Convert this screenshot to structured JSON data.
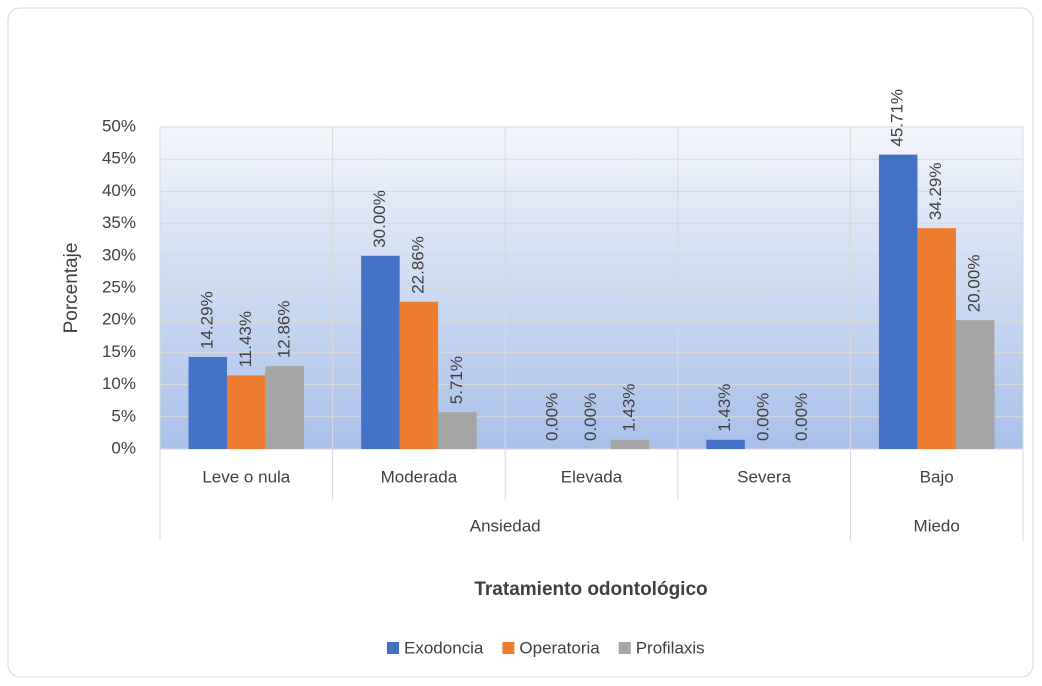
{
  "chart_data": {
    "type": "bar",
    "x_title": "Tratamiento odontológico",
    "y_title": "Porcentaje",
    "categories": [
      "Leve o nula",
      "Moderada",
      "Elevada",
      "Severa",
      "Bajo"
    ],
    "category_groups": [
      "Ansiedad",
      "Ansiedad",
      "Ansiedad",
      "Ansiedad",
      "Miedo"
    ],
    "series": [
      {
        "name": "Exodoncia",
        "color": "#4472c4",
        "values": [
          14.29,
          30.0,
          0.0,
          1.43,
          45.71
        ],
        "value_labels": [
          "14.29%",
          "30.00%",
          "0.00%",
          "1.43%",
          "45.71%"
        ]
      },
      {
        "name": "Operatoria",
        "color": "#ed7d31",
        "values": [
          11.43,
          22.86,
          0.0,
          0.0,
          34.29
        ],
        "value_labels": [
          "11.43%",
          "22.86%",
          "0.00%",
          "0.00%",
          "34.29%"
        ]
      },
      {
        "name": "Profilaxis",
        "color": "#a5a5a5",
        "values": [
          12.86,
          5.71,
          1.43,
          0.0,
          20.0
        ],
        "value_labels": [
          "12.86%",
          "5.71%",
          "1.43%",
          "0.00%",
          "20.00%"
        ]
      }
    ],
    "ylim": [
      0,
      50
    ],
    "yticks": [
      {
        "value": 0,
        "label": "0%"
      },
      {
        "value": 5,
        "label": "5%"
      },
      {
        "value": 10,
        "label": "10%"
      },
      {
        "value": 15,
        "label": "15%"
      },
      {
        "value": 20,
        "label": "20%"
      },
      {
        "value": 25,
        "label": "25%"
      },
      {
        "value": 30,
        "label": "30%"
      },
      {
        "value": 35,
        "label": "35%"
      },
      {
        "value": 40,
        "label": "40%"
      },
      {
        "value": 45,
        "label": "45%"
      },
      {
        "value": 50,
        "label": "50%"
      }
    ],
    "grid": true,
    "legend": "bottom"
  }
}
